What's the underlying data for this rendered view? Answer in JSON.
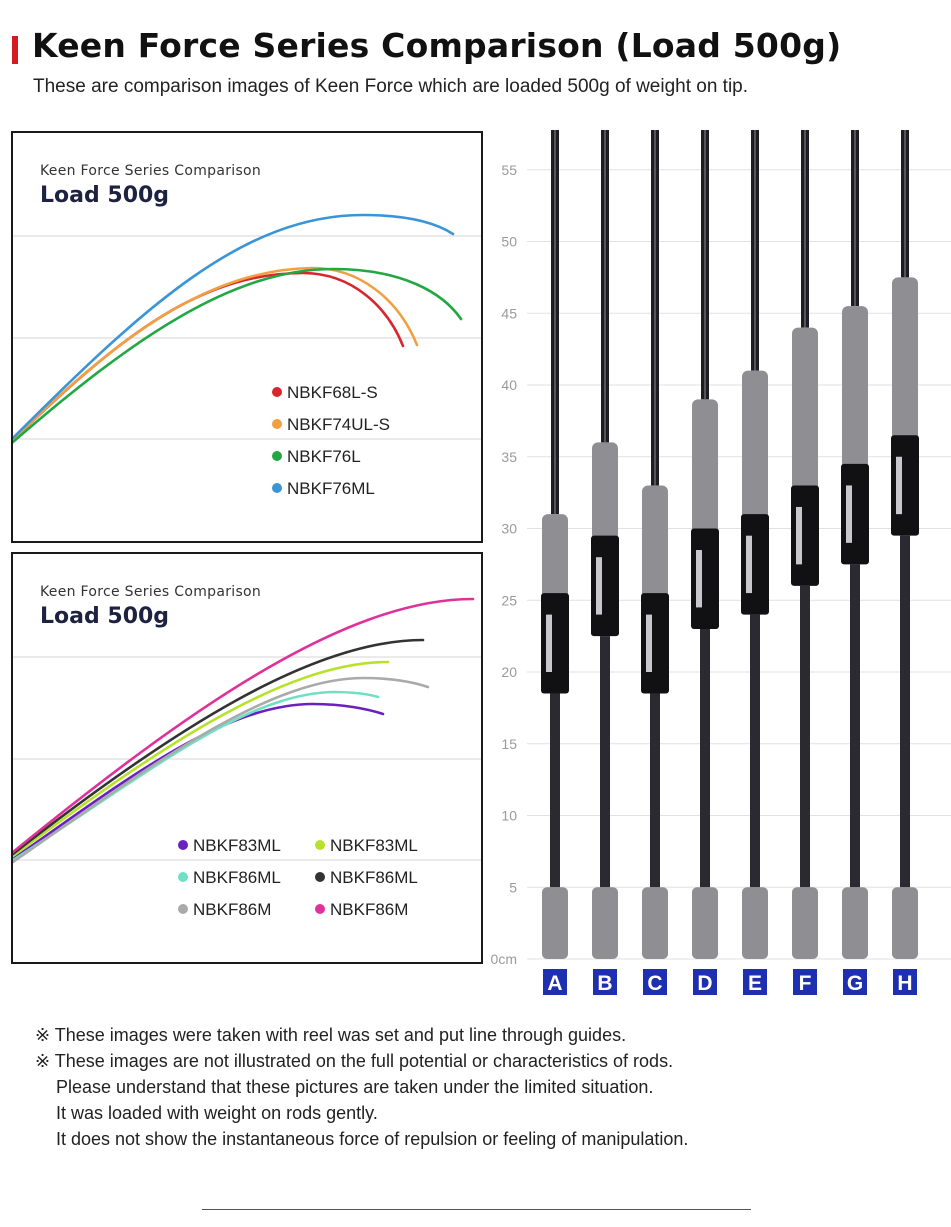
{
  "header": {
    "title": "Keen Force Series Comparison (Load 500g)",
    "subtitle": "These are comparison images of Keen Force which are loaded 500g of weight on tip.",
    "accent_color": "#d71920"
  },
  "chart_data": [
    {
      "type": "line",
      "subtitle": "Keen Force Series Comparison",
      "title": "Load 500g",
      "grid": true,
      "legend_position": "bottom-right",
      "series": [
        {
          "name": "NBKF68L-S",
          "color": "#d9262c"
        },
        {
          "name": "NBKF74UL-S",
          "color": "#f0a040"
        },
        {
          "name": "NBKF76L",
          "color": "#21a843"
        },
        {
          "name": "NBKF76ML",
          "color": "#3a95d8"
        }
      ]
    },
    {
      "type": "line",
      "subtitle": "Keen Force Series Comparison",
      "title": "Load 500g",
      "grid": true,
      "legend_position": "bottom-right",
      "series": [
        {
          "name": "NBKF83ML",
          "color": "#6a1fbf"
        },
        {
          "name": "NBKF83ML",
          "color": "#b8e22a"
        },
        {
          "name": "NBKF86ML",
          "color": "#6fe0c4"
        },
        {
          "name": "NBKF86ML",
          "color": "#333333"
        },
        {
          "name": "NBKF86M",
          "color": "#aaaaaa"
        },
        {
          "name": "NBKF86M",
          "color": "#e0309a"
        }
      ]
    },
    {
      "type": "bar",
      "categories": [
        "A",
        "B",
        "C",
        "D",
        "E",
        "F",
        "G",
        "H"
      ],
      "ylabel_unit": "cm",
      "ylim": [
        0,
        57
      ],
      "yticks": [
        "0cm",
        "5",
        "10",
        "15",
        "20",
        "25",
        "30",
        "35",
        "40",
        "45",
        "50",
        "55"
      ],
      "grip_top_values": [
        31,
        36,
        33,
        39,
        41,
        44,
        45.5,
        47.5
      ],
      "reel_seat_values": [
        18.5,
        22.5,
        18.5,
        23,
        24,
        26,
        27.5,
        29.5
      ],
      "label_color": "#1e2fb0"
    }
  ],
  "notes": [
    "※ These images were taken with reel was set and put line through guides.",
    "※ These images are not illustrated on the full potential or characteristics of rods.",
    "Please understand that these pictures are taken under the limited situation.",
    "It was loaded with weight on rods gently.",
    "It does not show the instantaneous force of repulsion or feeling of manipulation."
  ]
}
